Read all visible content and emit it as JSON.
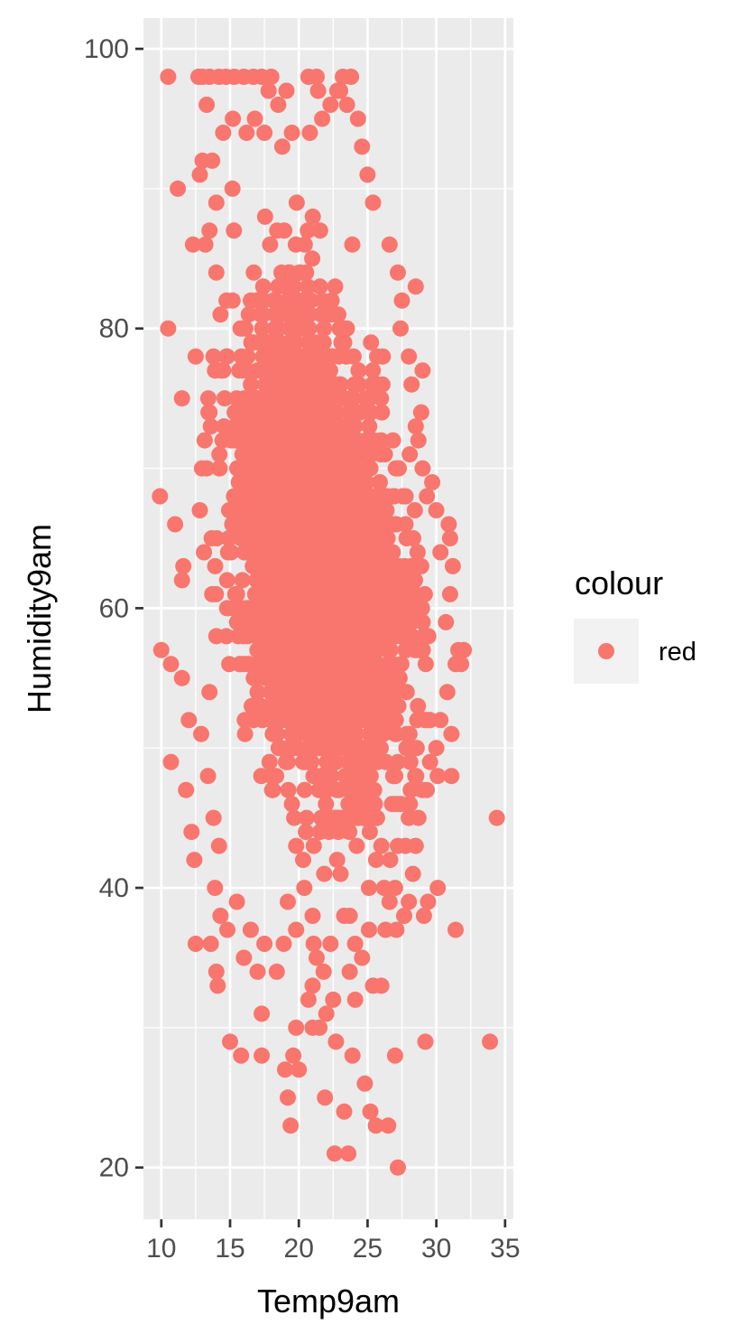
{
  "chart_data": {
    "type": "scatter",
    "xlabel": "Temp9am",
    "ylabel": "Humidity9am",
    "xlim": [
      8.7,
      35.6
    ],
    "ylim": [
      16.3,
      102.2
    ],
    "x_ticks": [
      10,
      15,
      20,
      25,
      30,
      35
    ],
    "y_ticks": [
      20,
      40,
      60,
      80,
      100
    ],
    "x_tick_labels": [
      "10",
      "15",
      "20",
      "25",
      "30",
      "35"
    ],
    "y_tick_labels": [
      "20",
      "40",
      "60",
      "80",
      "100"
    ],
    "grid": true,
    "background": "#ebebeb",
    "point_color": "#f8766d",
    "legend": {
      "title": "colour",
      "position": "right",
      "items": [
        {
          "label": "red",
          "color": "#f8766d"
        }
      ]
    },
    "series": [
      {
        "name": "red",
        "points": [
          [
            10.5,
            98
          ],
          [
            10.5,
            80
          ],
          [
            9.9,
            68
          ],
          [
            10.0,
            57
          ],
          [
            10.7,
            56
          ],
          [
            10.7,
            49
          ],
          [
            11.2,
            90
          ],
          [
            11.0,
            66
          ],
          [
            11.5,
            75
          ],
          [
            11.5,
            62
          ],
          [
            11.6,
            63
          ],
          [
            11.5,
            55
          ],
          [
            11.8,
            47
          ],
          [
            12.0,
            52
          ],
          [
            12.2,
            44
          ],
          [
            12.4,
            42
          ],
          [
            12.5,
            36
          ],
          [
            12.3,
            86
          ],
          [
            12.7,
            98
          ],
          [
            13.0,
            98
          ],
          [
            13.5,
            98
          ],
          [
            14.2,
            98
          ],
          [
            14.7,
            98
          ],
          [
            15.3,
            98
          ],
          [
            16.0,
            98
          ],
          [
            16.7,
            98
          ],
          [
            17.3,
            98
          ],
          [
            18.0,
            98
          ],
          [
            20.7,
            98
          ],
          [
            21.3,
            98
          ],
          [
            23.2,
            98
          ],
          [
            23.8,
            98
          ],
          [
            13.3,
            96
          ],
          [
            19.1,
            97
          ],
          [
            21.4,
            97
          ],
          [
            23.0,
            97
          ],
          [
            13.0,
            92
          ],
          [
            12.8,
            91
          ],
          [
            13.7,
            92
          ],
          [
            14.0,
            89
          ],
          [
            13.5,
            87
          ],
          [
            13.2,
            86
          ],
          [
            14.0,
            84
          ],
          [
            14.3,
            81
          ],
          [
            13.9,
            77
          ],
          [
            13.6,
            73
          ],
          [
            13.3,
            70
          ],
          [
            12.8,
            67
          ],
          [
            13.1,
            64
          ],
          [
            13.7,
            61
          ],
          [
            14.0,
            58
          ],
          [
            13.5,
            54
          ],
          [
            12.9,
            51
          ],
          [
            13.4,
            48
          ],
          [
            13.8,
            45
          ],
          [
            14.2,
            43
          ],
          [
            13.9,
            40
          ],
          [
            14.3,
            38
          ],
          [
            13.6,
            36
          ],
          [
            14.0,
            34
          ],
          [
            14.1,
            33
          ],
          [
            14.8,
            37
          ],
          [
            15.5,
            39
          ],
          [
            16.0,
            35
          ],
          [
            16.5,
            37
          ],
          [
            17.3,
            31
          ],
          [
            17.0,
            34
          ],
          [
            17.5,
            36
          ],
          [
            18.4,
            34
          ],
          [
            18.9,
            36
          ],
          [
            19.2,
            39
          ],
          [
            19.8,
            37
          ],
          [
            20.4,
            40
          ],
          [
            21.0,
            38
          ],
          [
            21.3,
            35
          ],
          [
            21.0,
            33
          ],
          [
            20.7,
            32
          ],
          [
            21.8,
            34
          ],
          [
            22.3,
            36
          ],
          [
            22.0,
            31
          ],
          [
            22.5,
            32
          ],
          [
            23.3,
            38
          ],
          [
            23.7,
            34
          ],
          [
            24.1,
            32
          ],
          [
            24.6,
            35
          ],
          [
            23.9,
            28
          ],
          [
            22.7,
            29
          ],
          [
            21.9,
            25
          ],
          [
            20.0,
            27
          ],
          [
            19.6,
            28
          ],
          [
            19.0,
            27
          ],
          [
            19.8,
            30
          ],
          [
            21.0,
            30
          ],
          [
            21.5,
            30
          ],
          [
            19.2,
            25
          ],
          [
            19.4,
            23
          ],
          [
            23.3,
            24
          ],
          [
            24.8,
            26
          ],
          [
            25.2,
            24
          ],
          [
            25.6,
            23
          ],
          [
            26.5,
            23
          ],
          [
            22.6,
            21
          ],
          [
            23.6,
            21
          ],
          [
            27.2,
            20
          ],
          [
            27.0,
            28
          ],
          [
            15.0,
            29
          ],
          [
            15.8,
            28
          ],
          [
            17.3,
            28
          ],
          [
            29.2,
            29
          ],
          [
            33.9,
            29
          ],
          [
            34.4,
            45
          ],
          [
            30.1,
            40
          ],
          [
            31.4,
            37
          ],
          [
            29.4,
            39
          ],
          [
            29.1,
            38
          ],
          [
            27.1,
            37
          ],
          [
            26.3,
            37
          ],
          [
            25.1,
            37
          ],
          [
            25.4,
            33
          ],
          [
            26.0,
            33
          ],
          [
            25.1,
            40
          ],
          [
            27.0,
            40
          ],
          [
            26.6,
            39
          ],
          [
            28.0,
            39
          ],
          [
            28.3,
            41
          ],
          [
            28.5,
            43
          ],
          [
            27.2,
            43
          ],
          [
            28.7,
            45
          ],
          [
            29.3,
            47
          ],
          [
            30.1,
            48
          ],
          [
            31.1,
            48
          ],
          [
            30.0,
            50
          ],
          [
            30.3,
            52
          ],
          [
            31.1,
            51
          ],
          [
            30.8,
            54
          ],
          [
            31.4,
            56
          ],
          [
            31.6,
            57
          ],
          [
            32.0,
            57
          ],
          [
            31.8,
            56
          ],
          [
            30.7,
            59
          ],
          [
            31.0,
            61
          ],
          [
            31.2,
            63
          ],
          [
            31.0,
            65
          ],
          [
            30.9,
            66
          ],
          [
            30.3,
            64
          ],
          [
            30.0,
            67
          ],
          [
            29.7,
            69
          ],
          [
            29.0,
            70
          ],
          [
            28.7,
            72
          ],
          [
            28.5,
            73
          ],
          [
            28.9,
            74
          ],
          [
            28.2,
            76
          ],
          [
            29.0,
            77
          ],
          [
            28.0,
            78
          ],
          [
            27.4,
            80
          ],
          [
            27.5,
            82
          ],
          [
            28.5,
            83
          ],
          [
            27.2,
            84
          ],
          [
            26.6,
            86
          ],
          [
            25.4,
            89
          ],
          [
            25.0,
            91
          ],
          [
            24.6,
            93
          ],
          [
            24.3,
            95
          ],
          [
            23.5,
            96
          ],
          [
            22.3,
            96
          ],
          [
            21.7,
            95
          ],
          [
            20.8,
            94
          ],
          [
            19.5,
            94
          ],
          [
            18.8,
            93
          ],
          [
            17.5,
            94
          ],
          [
            16.8,
            95
          ],
          [
            16.2,
            94
          ],
          [
            15.2,
            95
          ],
          [
            14.5,
            94
          ],
          [
            22.8,
            97
          ],
          [
            18.5,
            96
          ],
          [
            17.8,
            97
          ]
        ]
      }
    ]
  }
}
